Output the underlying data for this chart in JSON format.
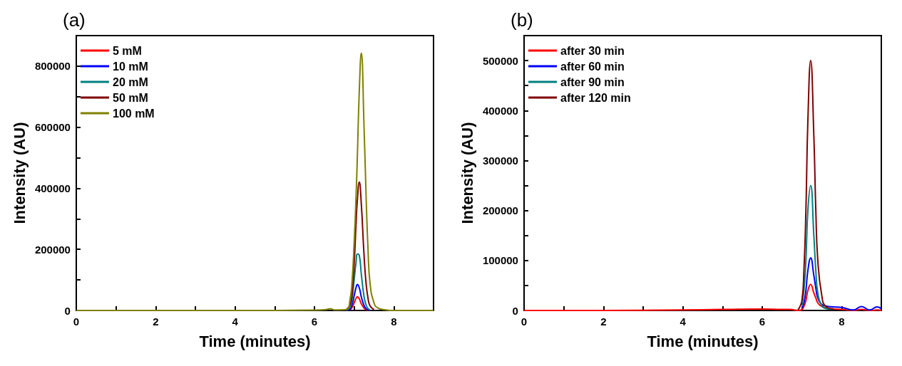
{
  "chart_data": [
    {
      "type": "line",
      "title": "(a)",
      "xlabel": "Time (minutes)",
      "ylabel": "Intensity (AU)",
      "legend": "top left",
      "grid": false,
      "marker": "none",
      "line_style": "solid",
      "xlim": [
        0,
        9
      ],
      "xticks": [
        0,
        {
          "value": 1,
          "label": null
        },
        2,
        {
          "value": 3,
          "label": null
        },
        4,
        {
          "value": 5,
          "label": null
        },
        6,
        {
          "value": 7,
          "label": null
        },
        8
      ],
      "ylim": [
        0,
        900000
      ],
      "yticks": [
        0,
        {
          "value": 100000,
          "label": null
        },
        200000,
        {
          "value": 300000,
          "label": null
        },
        400000,
        {
          "value": 500000,
          "label": null
        },
        600000,
        {
          "value": 700000,
          "label": null
        },
        800000
      ],
      "x": [
        0,
        1,
        2,
        3,
        4,
        5,
        6,
        6.3,
        6.4,
        6.5,
        6.8,
        6.9,
        6.95,
        7.0,
        7.05,
        7.08,
        7.13,
        7.18,
        7.25,
        7.3,
        7.35,
        7.4,
        7.5,
        7.6,
        7.8,
        8,
        9
      ],
      "series": [
        {
          "name": "5 mM",
          "color": "#ff0000",
          "values": [
            null,
            null,
            null,
            null,
            null,
            null,
            null,
            null,
            null,
            null,
            null,
            3000,
            10000,
            25000,
            40000,
            45000,
            38000,
            22000,
            8000,
            3000,
            1000,
            null,
            null,
            null,
            null,
            null,
            null
          ]
        },
        {
          "name": "10 mM",
          "color": "#0000ff",
          "values": [
            null,
            null,
            null,
            null,
            null,
            null,
            null,
            null,
            null,
            null,
            1000,
            6000,
            20000,
            48000,
            76000,
            85000,
            74000,
            45000,
            16000,
            6000,
            2000,
            1000,
            null,
            null,
            null,
            null,
            null
          ]
        },
        {
          "name": "20 mM",
          "color": "#008080",
          "values": [
            null,
            null,
            null,
            null,
            null,
            null,
            null,
            null,
            null,
            null,
            1000,
            12000,
            40000,
            100000,
            160000,
            185000,
            180000,
            120000,
            45000,
            18000,
            6000,
            2000,
            null,
            null,
            null,
            null,
            null
          ]
        },
        {
          "name": "50 mM",
          "color": "#800000",
          "values": [
            null,
            null,
            null,
            null,
            null,
            null,
            null,
            null,
            null,
            null,
            2000,
            20000,
            60000,
            150000,
            290000,
            360000,
            420000,
            350000,
            180000,
            90000,
            40000,
            15000,
            3000,
            null,
            null,
            null,
            null
          ]
        },
        {
          "name": "100 mM",
          "color": "#808000",
          "values": [
            0,
            0,
            0,
            0,
            0,
            0,
            1000,
            3000,
            6000,
            2000,
            3000,
            40000,
            100000,
            220000,
            380000,
            500000,
            720000,
            843000,
            600000,
            380000,
            200000,
            90000,
            25000,
            8000,
            2000,
            0,
            0
          ]
        }
      ]
    },
    {
      "type": "line",
      "title": "(b)",
      "xlabel": "Time (minutes)",
      "ylabel": "Intensity (AU)",
      "legend": "top left",
      "grid": false,
      "marker": "none",
      "line_style": "solid",
      "xlim": [
        0,
        9
      ],
      "xticks": [
        0,
        {
          "value": 1,
          "label": null
        },
        2,
        {
          "value": 3,
          "label": null
        },
        4,
        {
          "value": 5,
          "label": null
        },
        6,
        {
          "value": 7,
          "label": null
        },
        8
      ],
      "ylim": [
        0,
        550000
      ],
      "yticks": [
        0,
        {
          "value": 50000,
          "label": null
        },
        100000,
        {
          "value": 150000,
          "label": null
        },
        200000,
        {
          "value": 250000,
          "label": null
        },
        300000,
        {
          "value": 350000,
          "label": null
        },
        400000,
        {
          "value": 450000,
          "label": null
        },
        500000
      ],
      "x": [
        0,
        2,
        4,
        5,
        6,
        6.5,
        6.7,
        6.9,
        7.0,
        7.05,
        7.1,
        7.15,
        7.22,
        7.3,
        7.35,
        7.4,
        7.5,
        7.6,
        7.8,
        8.0,
        8.3,
        8.5,
        8.7,
        8.9,
        9
      ],
      "series": [
        {
          "name": "after 30 min",
          "color": "#ff0000",
          "values": [
            0,
            0,
            1000,
            2000,
            3000,
            2000,
            2000,
            0,
            2000,
            8000,
            20000,
            40000,
            52000,
            35000,
            25000,
            15000,
            8000,
            5000,
            3000,
            2000,
            0,
            2000,
            0,
            1000,
            0
          ]
        },
        {
          "name": "after 60 min",
          "color": "#0000ff",
          "values": [
            null,
            null,
            null,
            null,
            null,
            null,
            null,
            null,
            5000,
            15000,
            40000,
            80000,
            105000,
            70000,
            45000,
            25000,
            12000,
            9000,
            7000,
            6000,
            1000,
            8000,
            1000,
            7000,
            3000
          ]
        },
        {
          "name": "after 90 min",
          "color": "#008080",
          "values": [
            null,
            null,
            null,
            null,
            null,
            null,
            null,
            null,
            10000,
            40000,
            100000,
            200000,
            250000,
            150000,
            80000,
            35000,
            10000,
            4000,
            2000,
            null,
            null,
            null,
            null,
            null,
            null
          ]
        },
        {
          "name": "after 120 min",
          "color": "#800000",
          "values": [
            null,
            null,
            null,
            null,
            null,
            null,
            null,
            1000,
            20000,
            80000,
            200000,
            380000,
            500000,
            350000,
            200000,
            100000,
            30000,
            8000,
            3000,
            null,
            null,
            null,
            null,
            null,
            null
          ]
        }
      ]
    }
  ]
}
